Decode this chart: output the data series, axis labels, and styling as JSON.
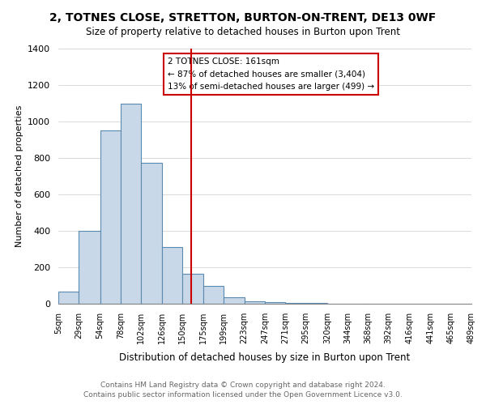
{
  "title": "2, TOTNES CLOSE, STRETTON, BURTON-ON-TRENT, DE13 0WF",
  "subtitle": "Size of property relative to detached houses in Burton upon Trent",
  "xlabel": "Distribution of detached houses by size in Burton upon Trent",
  "ylabel": "Number of detached properties",
  "bar_color": "#c8d8e8",
  "bar_edge_color": "#5a8ab0",
  "bin_edges": [
    5,
    29,
    54,
    78,
    102,
    126,
    150,
    175,
    199,
    223,
    247,
    271,
    295,
    320,
    344,
    368,
    392,
    416,
    441,
    465,
    489
  ],
  "bin_labels": [
    "5sqm",
    "29sqm",
    "54sqm",
    "78sqm",
    "102sqm",
    "126sqm",
    "150sqm",
    "175sqm",
    "199sqm",
    "223sqm",
    "247sqm",
    "271sqm",
    "295sqm",
    "320sqm",
    "344sqm",
    "368sqm",
    "392sqm",
    "416sqm",
    "441sqm",
    "465sqm",
    "489sqm"
  ],
  "counts": [
    65,
    400,
    950,
    1100,
    775,
    310,
    165,
    100,
    35,
    15,
    10,
    5,
    3,
    2,
    1,
    1,
    0,
    0,
    0,
    1
  ],
  "vline_x": 161,
  "vline_color": "#cc0000",
  "annotation_title": "2 TOTNES CLOSE: 161sqm",
  "annotation_line1": "← 87% of detached houses are smaller (3,404)",
  "annotation_line2": "13% of semi-detached houses are larger (499) →",
  "annotation_box_color": "#ffffff",
  "annotation_box_edge": "#cc0000",
  "ylim": [
    0,
    1400
  ],
  "yticks": [
    0,
    200,
    400,
    600,
    800,
    1000,
    1200,
    1400
  ],
  "footer_line1": "Contains HM Land Registry data © Crown copyright and database right 2024.",
  "footer_line2": "Contains public sector information licensed under the Open Government Licence v3.0.",
  "background_color": "#ffffff",
  "grid_color": "#cccccc"
}
